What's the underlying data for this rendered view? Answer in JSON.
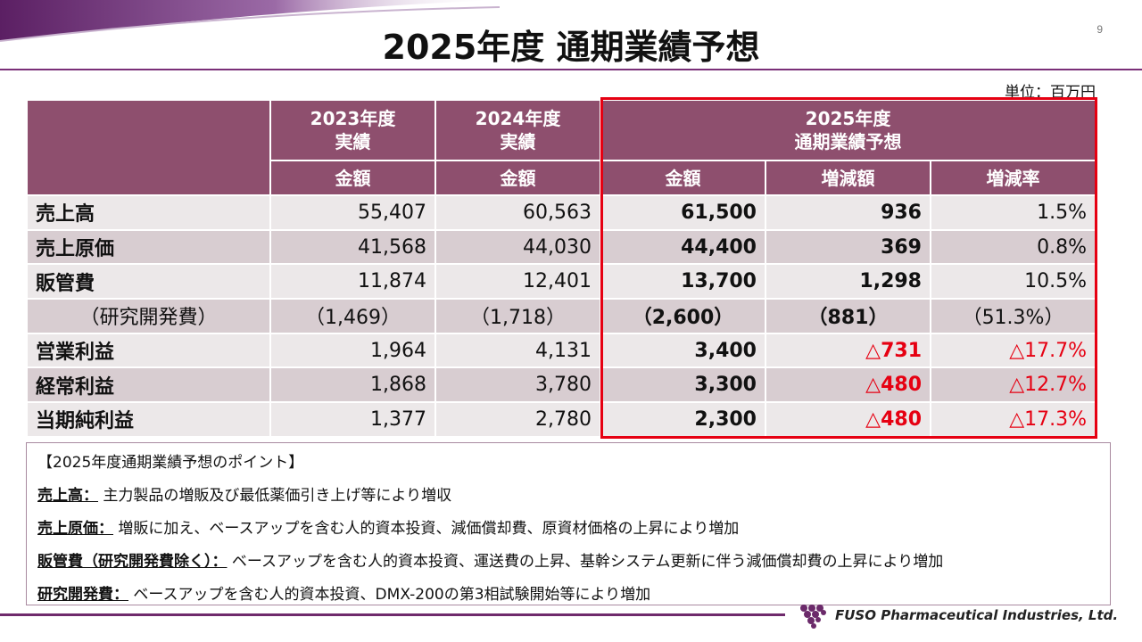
{
  "page": {
    "title": "2025年度 通期業績予想",
    "page_number": "9",
    "unit": "単位：百万円",
    "company": "FUSO Pharmaceutical Industries, Ltd."
  },
  "colors": {
    "header_bg": "#8e4f6e",
    "row_light": "#ece8e9",
    "row_dark": "#d8cdd1",
    "highlight_frame": "#e60012",
    "negative_text": "#e60012",
    "accent_purple": "#7a2f78"
  },
  "table": {
    "headers": {
      "fy2023": "2023年度\n実績",
      "fy2024": "2024年度\n実績",
      "fy2025": "2025年度\n通期業績予想"
    },
    "subheaders": {
      "amount_2023": "金額",
      "amount_2024": "金額",
      "amount_2025": "金額",
      "change_amount": "増減額",
      "change_rate": "増減率"
    },
    "rows": [
      {
        "label": "売上高",
        "fy2023": "55,407",
        "fy2024": "60,563",
        "fy2025": "61,500",
        "change": "936",
        "rate": "1.5%"
      },
      {
        "label": "売上原価",
        "fy2023": "41,568",
        "fy2024": "44,030",
        "fy2025": "44,400",
        "change": "369",
        "rate": "0.8%"
      },
      {
        "label": "販管費",
        "fy2023": "11,874",
        "fy2024": "12,401",
        "fy2025": "13,700",
        "change": "1,298",
        "rate": "10.5%"
      },
      {
        "label": "（研究開発費）",
        "fy2023": "（1,469）",
        "fy2024": "（1,718）",
        "fy2025": "（2,600）",
        "change": "（881）",
        "rate": "（51.3%）"
      },
      {
        "label": "営業利益",
        "fy2023": "1,964",
        "fy2024": "4,131",
        "fy2025": "3,400",
        "change": "△731",
        "rate": "△17.7%"
      },
      {
        "label": "経常利益",
        "fy2023": "1,868",
        "fy2024": "3,780",
        "fy2025": "3,300",
        "change": "△480",
        "rate": "△12.7%"
      },
      {
        "label": "当期純利益",
        "fy2023": "1,377",
        "fy2024": "2,780",
        "fy2025": "2,300",
        "change": "△480",
        "rate": "△17.3%"
      }
    ]
  },
  "points": {
    "heading": "【2025年度通期業績予想のポイント】",
    "items": [
      {
        "term": "売上高：",
        "text": "主力製品の増販及び最低薬価引き上げ等により増収"
      },
      {
        "term": "売上原価：",
        "text": "増販に加え、ベースアップを含む人的資本投資、減価償却費、原資材価格の上昇により増加"
      },
      {
        "term": "販管費（研究開発費除く）：",
        "text": "ベースアップを含む人的資本投資、運送費の上昇、基幹システム更新に伴う減価償却費の上昇により増加"
      },
      {
        "term": "研究開発費：",
        "text": "ベースアップを含む人的資本投資、DMX-200の第3相試験開始等により増加"
      }
    ]
  }
}
